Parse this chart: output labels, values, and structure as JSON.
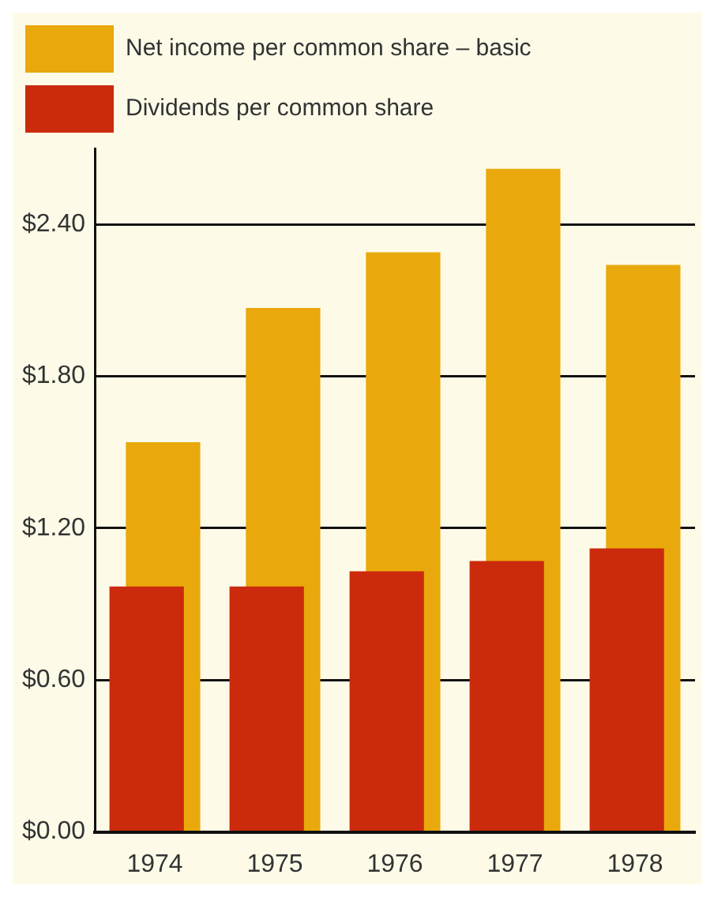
{
  "chart_data": {
    "type": "bar",
    "categories": [
      "1974",
      "1975",
      "1976",
      "1977",
      "1978"
    ],
    "series": [
      {
        "name": "Net income per common share – basic",
        "color": "#e9a90c",
        "values": [
          1.54,
          2.07,
          2.29,
          2.62,
          2.24
        ]
      },
      {
        "name": "Dividends per common share",
        "color": "#cc2a0c",
        "values": [
          0.97,
          0.97,
          1.03,
          1.07,
          1.12
        ]
      }
    ],
    "ylim": [
      0,
      2.7
    ],
    "yticks": [
      {
        "value": 0,
        "label": "$0.00"
      },
      {
        "value": 0.6,
        "label": "$0.60"
      },
      {
        "value": 1.2,
        "label": "$1.20"
      },
      {
        "value": 1.8,
        "label": "$1.80"
      },
      {
        "value": 2.4,
        "label": "$2.40"
      }
    ],
    "grid": "y",
    "legend": "top left"
  }
}
